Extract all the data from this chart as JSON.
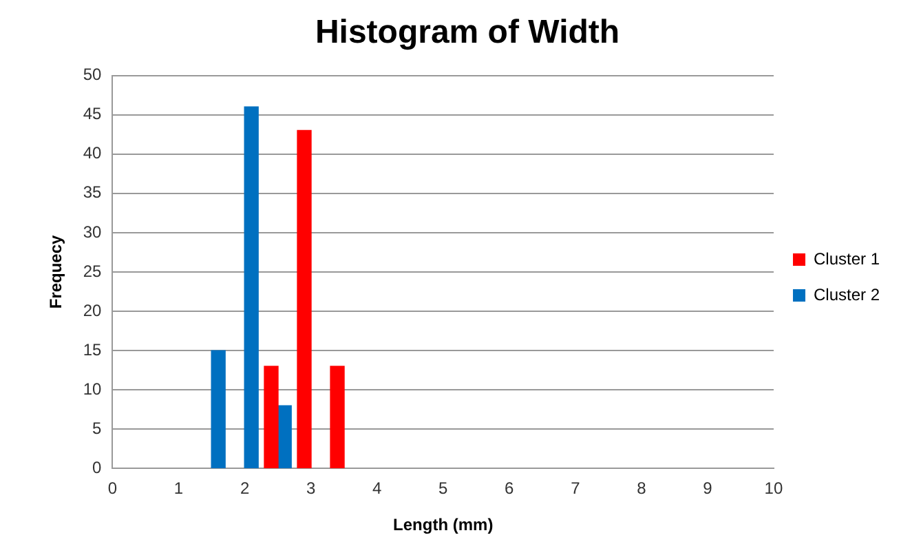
{
  "chart_data": {
    "type": "bar",
    "title": "Histogram of Width",
    "xlabel": "Length (mm)",
    "ylabel": "Frequecy",
    "series": [
      {
        "name": "Cluster 1",
        "color": "#ff0000",
        "x": [
          2.4,
          2.9,
          3.4
        ],
        "values": [
          13,
          43,
          13
        ]
      },
      {
        "name": "Cluster 2",
        "color": "#0070c0",
        "x": [
          1.6,
          2.1,
          2.6
        ],
        "values": [
          15,
          46,
          8
        ]
      }
    ],
    "xlim": [
      0,
      10
    ],
    "xticks": [
      0,
      1,
      2,
      3,
      4,
      5,
      6,
      7,
      8,
      9,
      10
    ],
    "ylim": [
      0,
      50
    ],
    "yticks": [
      0,
      5,
      10,
      15,
      20,
      25,
      30,
      35,
      40,
      45,
      50
    ],
    "grid": "y",
    "legend": "right"
  }
}
